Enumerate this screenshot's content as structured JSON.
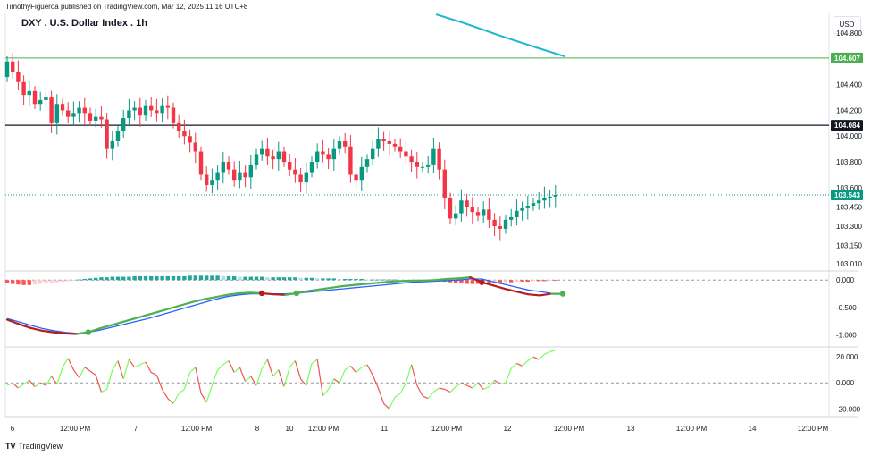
{
  "header": {
    "publisher_line": "TimothyFigueroa published on TradingView.com, Mar 12, 2025 11:16 UTC+8",
    "title": "DXY . U.S. Dollar Index . 1h",
    "currency": "USD"
  },
  "footer": {
    "brand_logo": "TV",
    "brand": "TradingView"
  },
  "colors": {
    "up": "#089981",
    "down": "#f23645",
    "teal_ma": "#22b8cf",
    "green_line": "#4caf50",
    "black_line": "#131722",
    "dotted_line": "#26a69a"
  },
  "chart_data": [
    {
      "type": "candlestick",
      "title": "DXY . U.S. Dollar Index . 1h",
      "x_ticks": [
        "6",
        "12:00 PM",
        "7",
        "12:00 PM",
        "8",
        "10",
        "12:00 PM",
        "11",
        "12:00 PM",
        "12",
        "12:00 PM",
        "13",
        "12:00 PM",
        "14",
        "12:00 PM"
      ],
      "y_ticks": [
        "104.800",
        "104.400",
        "104.200",
        "104.000",
        "103.800",
        "103.600",
        "103.450",
        "103.300",
        "103.150",
        "103.010"
      ],
      "ylim": [
        102.96,
        104.96
      ],
      "price_tags": [
        {
          "value": 104.607,
          "label": "104.607",
          "color": "#4caf50"
        },
        {
          "value": 104.084,
          "label": "104.084",
          "color": "#131722"
        },
        {
          "value": 103.543,
          "label": "103.543",
          "color": "#089981"
        }
      ],
      "closes": [
        104.58,
        104.5,
        104.42,
        104.32,
        104.35,
        104.25,
        104.28,
        104.3,
        104.1,
        104.25,
        104.2,
        104.15,
        104.18,
        104.22,
        104.18,
        104.12,
        104.15,
        104.13,
        103.9,
        103.96,
        104.04,
        104.14,
        104.2,
        104.22,
        104.16,
        104.24,
        104.2,
        104.18,
        104.24,
        104.22,
        104.1,
        104.04,
        104.0,
        103.95,
        103.88,
        103.7,
        103.62,
        103.66,
        103.72,
        103.8,
        103.74,
        103.66,
        103.72,
        103.68,
        103.78,
        103.86,
        103.9,
        103.84,
        103.82,
        103.88,
        103.8,
        103.74,
        103.7,
        103.64,
        103.72,
        103.8,
        103.88,
        103.86,
        103.82,
        103.9,
        103.96,
        103.92,
        103.7,
        103.66,
        103.76,
        103.82,
        103.9,
        103.98,
        103.96,
        103.94,
        103.92,
        103.88,
        103.84,
        103.8,
        103.76,
        103.76,
        103.78,
        103.9,
        103.74,
        103.52,
        103.36,
        103.4,
        103.5,
        103.45,
        103.41,
        103.38,
        103.43,
        103.35,
        103.3,
        103.28,
        103.35,
        103.37,
        103.42,
        103.44,
        103.46,
        103.48,
        103.5,
        103.52,
        103.53,
        103.543
      ],
      "indicator_1": {
        "y_ticks": [
          "0.000",
          "-0.500",
          "-1.000"
        ],
        "ylim": [
          -1.2,
          0.15
        ],
        "histogram": [
          -0.05,
          -0.07,
          -0.08,
          -0.09,
          -0.09,
          -0.08,
          -0.07,
          -0.06,
          -0.05,
          -0.04,
          -0.03,
          -0.02,
          -0.01,
          0.01,
          0.02,
          0.03,
          0.04,
          0.05,
          0.05,
          0.06,
          0.06,
          0.06,
          0.06,
          0.07,
          0.07,
          0.07,
          0.07,
          0.07,
          0.07,
          0.07,
          0.07,
          0.07,
          0.07,
          0.08,
          0.08,
          0.08,
          0.08,
          0.08,
          0.08,
          0.07,
          0.07,
          0.07,
          0.06,
          0.06,
          0.06,
          0.06,
          0.06,
          0.05,
          0.05,
          0.05,
          0.05,
          0.05,
          0.05,
          0.04,
          0.04,
          0.04,
          0.03,
          0.03,
          0.03,
          0.03,
          0.02,
          0.02,
          0.02,
          0.02,
          0.02,
          0.01,
          0.01,
          0.01,
          0.01,
          0.01,
          0.01,
          0.0,
          0.0,
          0.0,
          -0.01,
          -0.01,
          -0.01,
          -0.01,
          -0.02,
          -0.03,
          -0.04,
          -0.05,
          -0.06,
          -0.07,
          -0.07,
          -0.07,
          -0.06,
          -0.06,
          -0.05,
          -0.05,
          -0.04,
          -0.04,
          -0.03,
          -0.03,
          -0.03,
          -0.02,
          -0.02,
          -0.02,
          -0.01,
          -0.01
        ],
        "signal_line": [
          -0.72,
          -0.8,
          -0.87,
          -0.92,
          -0.95,
          -0.97,
          -0.98,
          -0.95,
          -0.88,
          -0.82,
          -0.76,
          -0.7,
          -0.64,
          -0.58,
          -0.52,
          -0.46,
          -0.4,
          -0.35,
          -0.31,
          -0.27,
          -0.24,
          -0.23,
          -0.24,
          -0.26,
          -0.27,
          -0.24,
          -0.2,
          -0.17,
          -0.14,
          -0.11,
          -0.09,
          -0.07,
          -0.05,
          -0.03,
          -0.02,
          -0.01,
          -0.01,
          0.0,
          0.02,
          0.03,
          0.05,
          -0.04,
          -0.1,
          -0.16,
          -0.21,
          -0.26,
          -0.28,
          -0.25,
          -0.25
        ],
        "macd_line": [
          -0.7,
          -0.76,
          -0.82,
          -0.88,
          -0.92,
          -0.95,
          -0.97,
          -0.95,
          -0.91,
          -0.86,
          -0.81,
          -0.76,
          -0.71,
          -0.65,
          -0.59,
          -0.53,
          -0.47,
          -0.41,
          -0.35,
          -0.3,
          -0.27,
          -0.25,
          -0.25,
          -0.25,
          -0.25,
          -0.24,
          -0.22,
          -0.2,
          -0.18,
          -0.16,
          -0.14,
          -0.12,
          -0.1,
          -0.08,
          -0.06,
          -0.04,
          -0.03,
          -0.02,
          -0.01,
          0.0,
          0.02,
          0.02,
          -0.03,
          -0.08,
          -0.13,
          -0.18,
          -0.21,
          -0.24,
          -0.25
        ]
      },
      "indicator_2": {
        "y_ticks": [
          "20.000",
          "0.000",
          "-20.000"
        ],
        "ylim": [
          -26,
          27
        ],
        "values": [
          -2,
          0,
          -4,
          -1,
          2,
          -3,
          0,
          -2,
          5,
          -1,
          12,
          19,
          10,
          4,
          12,
          9,
          6,
          -7,
          -5,
          10,
          17,
          3,
          18,
          12,
          14,
          16,
          8,
          6,
          -5,
          -12,
          -16,
          -8,
          -5,
          8,
          12,
          -8,
          -15,
          -2,
          10,
          14,
          17,
          8,
          12,
          1,
          5,
          -2,
          11,
          18,
          5,
          10,
          -3,
          12,
          17,
          3,
          -2,
          15,
          18,
          -10,
          -5,
          3,
          0,
          10,
          13,
          8,
          12,
          14,
          6,
          -4,
          -16,
          -20,
          -11,
          -8,
          0,
          14,
          -2,
          -10,
          -12,
          -7,
          -4,
          -5,
          -7,
          -3,
          0,
          -2,
          -4,
          0,
          -5,
          -3,
          2,
          -1,
          0,
          11,
          15,
          13,
          17,
          20,
          18,
          22,
          24,
          25
        ]
      }
    }
  ]
}
